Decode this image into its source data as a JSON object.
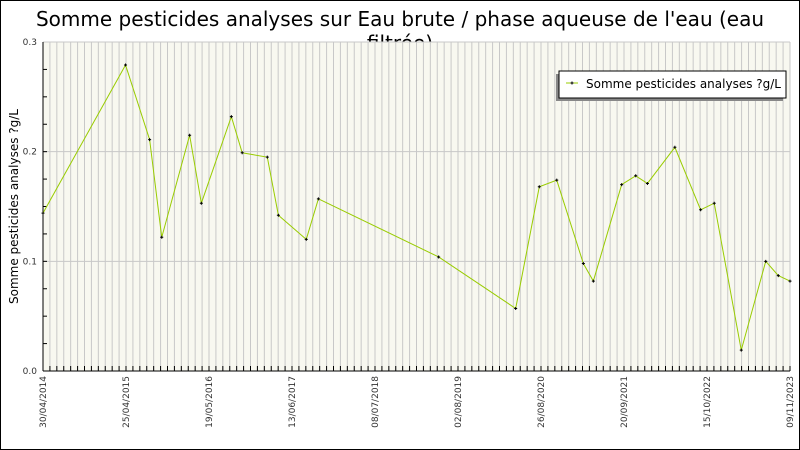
{
  "chart_data": {
    "type": "line",
    "title": "Somme pesticides analyses sur Eau brute / phase aqueuse de l'eau (eau filtrée)",
    "xlabel": "",
    "ylabel": "Somme pesticides analyses ?g/L",
    "ylim": [
      0,
      0.3
    ],
    "yticks": [
      "0.0",
      "0.1",
      "0.2",
      "0.3"
    ],
    "xticks": [
      "30/04/2014",
      "25/04/2015",
      "19/05/2016",
      "13/06/2017",
      "08/07/2018",
      "02/08/2019",
      "26/08/2020",
      "20/09/2021",
      "15/10/2022",
      "09/11/2023"
    ],
    "grid": true,
    "legend_position": "top-right",
    "line_color": "#99cc00",
    "background_color": "#f8f8f0",
    "series": [
      {
        "name": "Somme pesticides analyses ?g/L",
        "points": [
          [
            "2014-04-30",
            0.144
          ],
          [
            "2015-04-23",
            0.279
          ],
          [
            "2015-08-14",
            0.211
          ],
          [
            "2015-10-10",
            0.122
          ],
          [
            "2016-02-18",
            0.215
          ],
          [
            "2016-04-13",
            0.153
          ],
          [
            "2016-09-01",
            0.232
          ],
          [
            "2016-10-22",
            0.199
          ],
          [
            "2017-02-17",
            0.195
          ],
          [
            "2017-04-10",
            0.142
          ],
          [
            "2017-08-19",
            0.12
          ],
          [
            "2017-10-15",
            0.157
          ],
          [
            "2019-05-03",
            0.104
          ],
          [
            "2020-04-29",
            0.057
          ],
          [
            "2020-08-18",
            0.168
          ],
          [
            "2020-11-08",
            0.174
          ],
          [
            "2021-03-13",
            0.098
          ],
          [
            "2021-04-29",
            0.082
          ],
          [
            "2021-09-09",
            0.17
          ],
          [
            "2021-11-14",
            0.178
          ],
          [
            "2022-01-08",
            0.171
          ],
          [
            "2022-05-17",
            0.204
          ],
          [
            "2022-09-15",
            0.147
          ],
          [
            "2022-11-18",
            0.153
          ],
          [
            "2023-03-25",
            0.019
          ],
          [
            "2023-07-18",
            0.1
          ],
          [
            "2023-09-15",
            0.087
          ],
          [
            "2023-11-09",
            0.082
          ]
        ]
      }
    ]
  }
}
